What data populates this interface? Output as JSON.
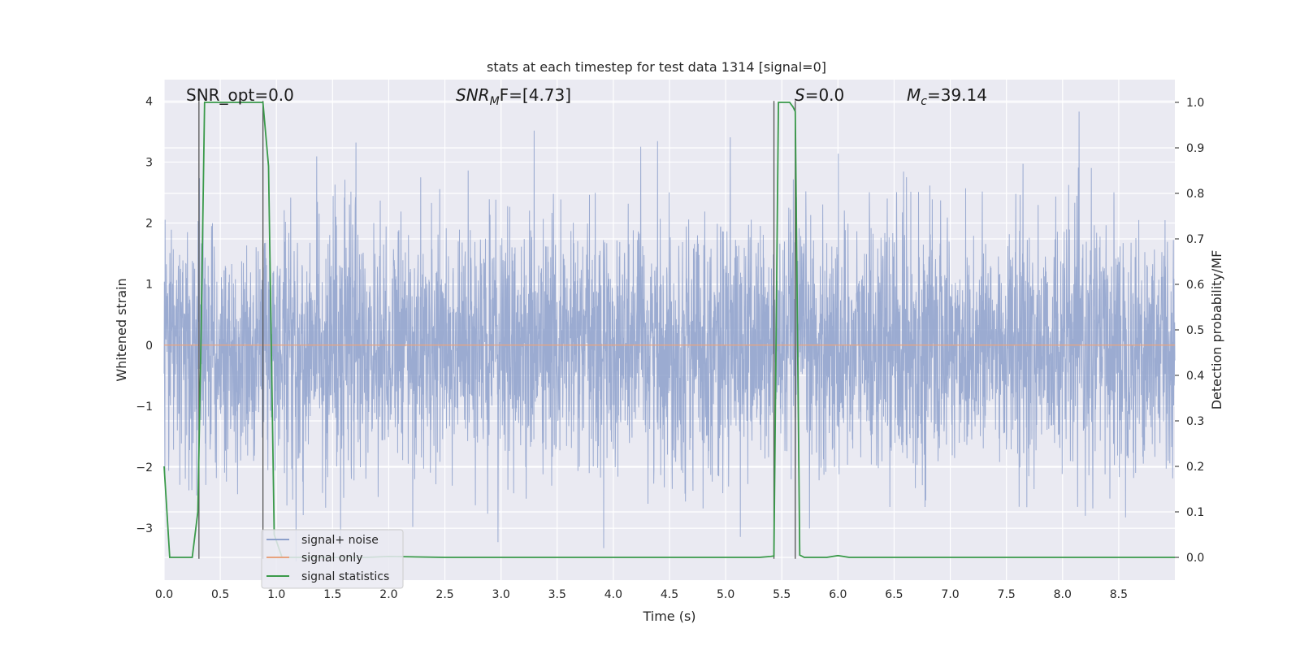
{
  "chart_data": {
    "type": "line",
    "title": "stats at each timestep for test data 1314 [signal=0]",
    "xlabel": "Time (s)",
    "ylabel": "Whitened strain",
    "ylabel_right": "Detection probability/MF",
    "xlim": [
      0.0,
      9.0
    ],
    "ylim": [
      -3.85,
      4.35
    ],
    "ylim_right": [
      -0.05,
      1.05
    ],
    "x_ticks": [
      "0.0",
      "0.5",
      "1.0",
      "1.5",
      "2.0",
      "2.5",
      "3.0",
      "3.5",
      "4.0",
      "4.5",
      "5.0",
      "5.5",
      "6.0",
      "6.5",
      "7.0",
      "7.5",
      "8.0",
      "8.5"
    ],
    "x_tick_values": [
      0.0,
      0.5,
      1.0,
      1.5,
      2.0,
      2.5,
      3.0,
      3.5,
      4.0,
      4.5,
      5.0,
      5.5,
      6.0,
      6.5,
      7.0,
      7.5,
      8.0,
      8.5
    ],
    "y_ticks": [
      "4",
      "3",
      "2",
      "1",
      "0",
      "−1",
      "−2",
      "−3"
    ],
    "y_tick_values": [
      4,
      3,
      2,
      1,
      0,
      -1,
      -2,
      -3
    ],
    "y_ticks_right": [
      "1.0",
      "0.9",
      "0.8",
      "0.7",
      "0.6",
      "0.5",
      "0.4",
      "0.3",
      "0.2",
      "0.1",
      "0.0"
    ],
    "y_tick_values_right": [
      1.0,
      0.9,
      0.8,
      0.7,
      0.6,
      0.5,
      0.4,
      0.3,
      0.2,
      0.1,
      0.0
    ],
    "grid": true,
    "annotations": {
      "snr_opt": "SNR_opt=0.0",
      "snr_mf_sym": "SNR",
      "snr_mf_sub": "M",
      "snr_mf_tail": "F=[4.73]",
      "s_sym": "S",
      "s_tail": "=0.0",
      "mc_sym": "M",
      "mc_sub": "c",
      "mc_tail": "=39.14"
    },
    "vertical_lines": [
      0.31,
      0.88,
      5.43,
      5.62
    ],
    "series": [
      {
        "name": "signal+ noise",
        "color": "#8da0cb",
        "description_values": "white gaussian noise, std ~1, peaks near ±3.5 to 4.0 from t=0 to 9"
      },
      {
        "name": "signal only",
        "color": "#e8a37e",
        "values_constant": 0.0
      },
      {
        "name": "signal statistics",
        "color": "#3a9a4a",
        "axis": "right",
        "x": [
          0.0,
          0.05,
          0.1,
          0.15,
          0.2,
          0.25,
          0.3,
          0.33,
          0.36,
          0.4,
          0.45,
          0.5,
          0.55,
          0.6,
          0.65,
          0.7,
          0.75,
          0.8,
          0.85,
          0.88,
          0.93,
          0.98,
          1.05,
          1.2,
          1.5,
          1.8,
          2.0,
          2.5,
          3.0,
          3.5,
          4.0,
          4.5,
          5.0,
          5.3,
          5.4,
          5.43,
          5.47,
          5.52,
          5.57,
          5.6,
          5.62,
          5.66,
          5.7,
          5.8,
          5.9,
          6.0,
          6.1,
          6.5,
          7.0,
          7.5,
          8.0,
          8.5,
          9.0
        ],
        "values": [
          0.2,
          0.0,
          0.0,
          0.0,
          0.0,
          0.0,
          0.1,
          0.5,
          1.0,
          1.0,
          1.0,
          1.0,
          1.0,
          1.0,
          1.0,
          1.0,
          1.0,
          1.0,
          1.0,
          1.0,
          0.86,
          0.05,
          0.0,
          0.0,
          0.0,
          0.0,
          0.002,
          0.0,
          0.0,
          0.0,
          0.0,
          0.0,
          0.0,
          0.0,
          0.002,
          0.003,
          1.0,
          1.0,
          1.0,
          0.99,
          0.98,
          0.005,
          0.0,
          0.0,
          0.0,
          0.004,
          0.0,
          0.0,
          0.0,
          0.0,
          0.0,
          0.0,
          0.0
        ]
      }
    ],
    "legend": {
      "placement": "lower-left",
      "entries": [
        {
          "label": "signal+ noise",
          "color": "#8da0cb"
        },
        {
          "label": "signal only",
          "color": "#e8a37e"
        },
        {
          "label": "signal statistics",
          "color": "#3a9a4a"
        }
      ]
    }
  }
}
